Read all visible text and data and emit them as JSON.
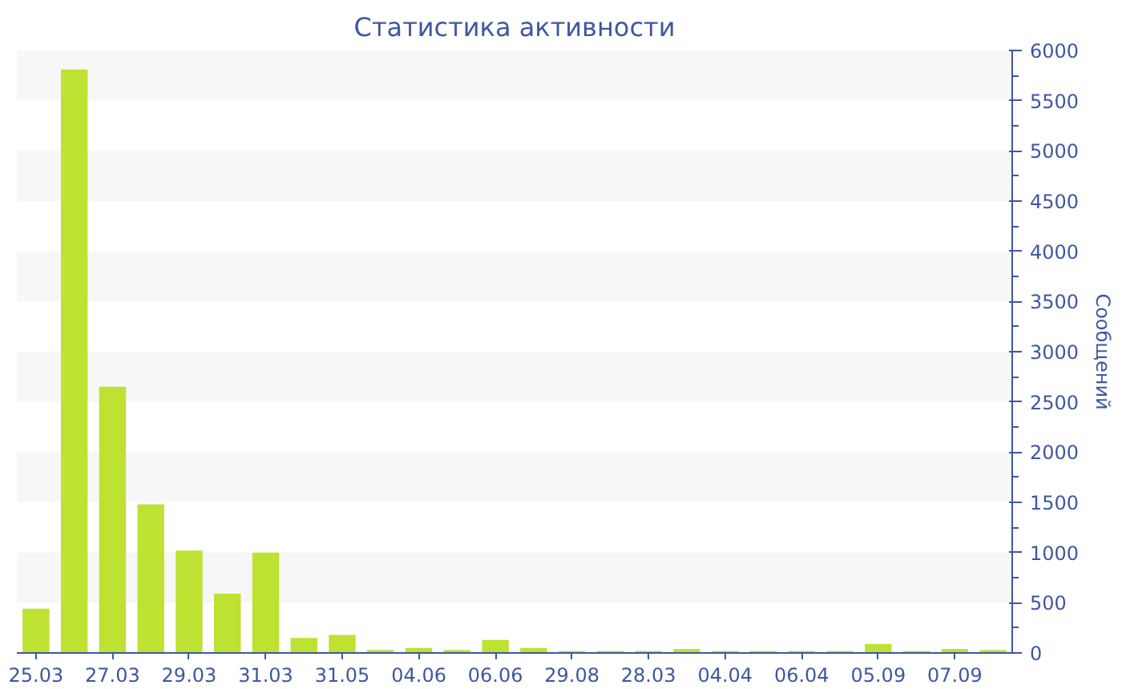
{
  "chart_data": {
    "type": "bar",
    "title": "Статистика активности",
    "ylabel": "Сообщений",
    "categories": [
      "25.03",
      null,
      "27.03",
      null,
      "29.03",
      null,
      "31.03",
      null,
      "31.05",
      null,
      "04.06",
      null,
      "06.06",
      null,
      "29.08",
      null,
      "28.03",
      null,
      "04.04",
      null,
      "06.04",
      null,
      "05.09",
      null,
      "07.09",
      null
    ],
    "values": [
      440,
      5810,
      2650,
      1480,
      1020,
      590,
      1000,
      150,
      180,
      30,
      50,
      30,
      130,
      50,
      20,
      20,
      20,
      40,
      20,
      20,
      20,
      20,
      90,
      20,
      40,
      30
    ],
    "color": "#bde232",
    "ylim": [
      0,
      6000
    ],
    "yticks": [
      0,
      500,
      1000,
      1500,
      2000,
      2500,
      3000,
      3500,
      4000,
      4500,
      5000,
      5500,
      6000
    ]
  }
}
